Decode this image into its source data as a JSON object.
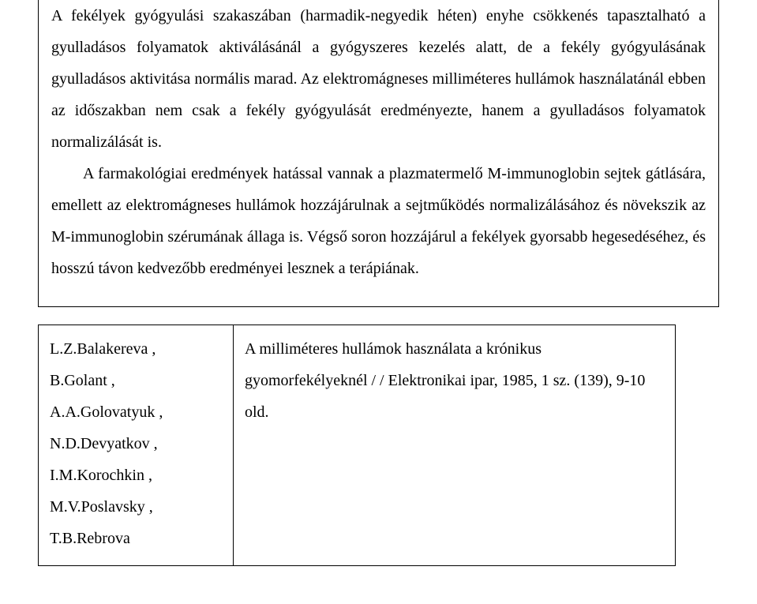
{
  "body": {
    "paragraphs": [
      "A fekélyek gyógyulási szakaszában (harmadik-negyedik héten) enyhe csökkenés tapasztalható a gyulladásos folyamatok aktiválásánál a gyógyszeres kezelés alatt, de a fekély gyógyulásának gyulladásos aktivitása normális marad. Az elektromágneses milliméteres hullámok használatánál ebben az időszakban nem csak a fekély gyógyulását eredményezte, hanem a gyulladásos folyamatok normalizálását is.",
      "A farmakológiai eredmények hatással vannak a plazmatermelő M-immunoglobin sejtek gátlására, emellett az elektromágneses hullámok hozzájárulnak a sejtműködés normalizálásához és növekszik az M-immunoglobin szérumának állaga is. Végső soron hozzájárul a fekélyek gyorsabb hegesedéséhez, és hosszú távon kedvezőbb eredményei lesznek a terápiának."
    ]
  },
  "reference": {
    "authors": [
      "L.Z.Balakereva ,",
      "B.Golant ,",
      "A.A.Golovatyuk ,",
      "N.D.Devyatkov ,",
      "I.M.Korochkin ,",
      "M.V.Poslavsky ,",
      "T.B.Rebrova"
    ],
    "citation": "A milliméteres hullámok használata a krónikus gyomorfekélyeknél / / Elektronikai ipar, 1985, 1 sz. (139), 9-10 old."
  }
}
